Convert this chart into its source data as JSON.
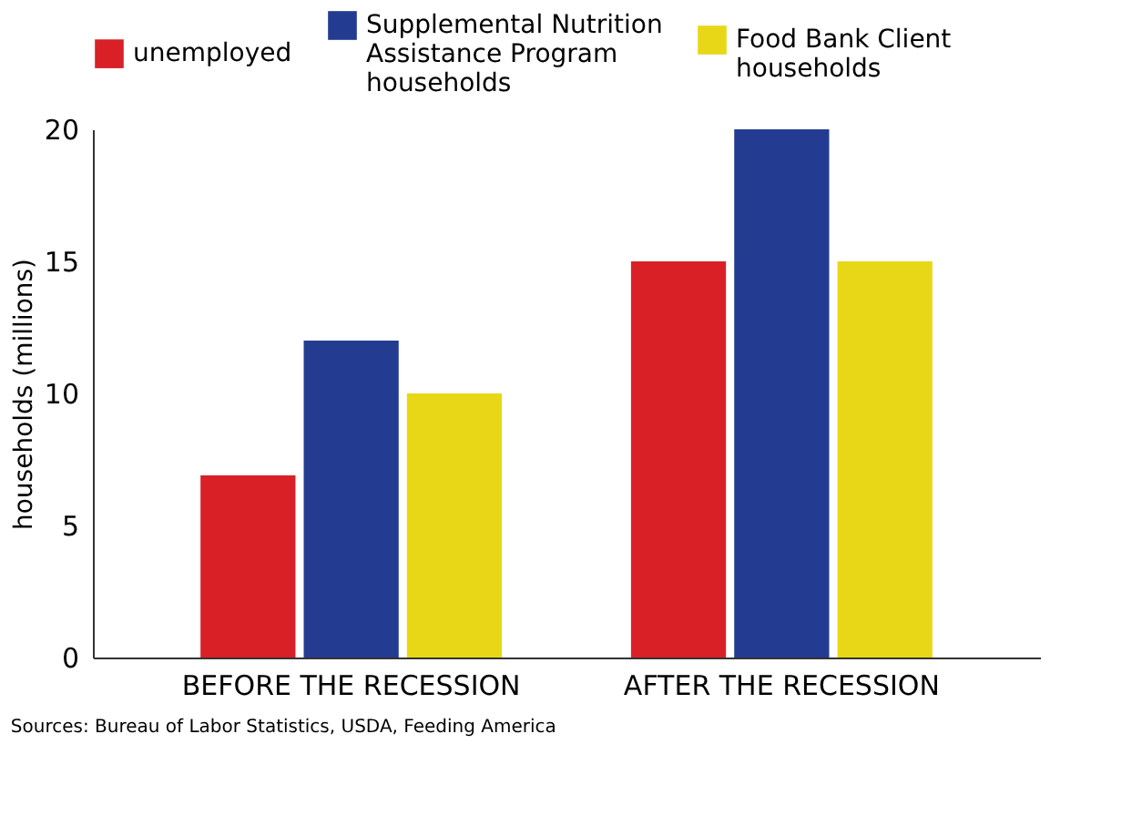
{
  "chart_data": {
    "type": "bar",
    "ylabel": "households (millions)",
    "categories": [
      "BEFORE THE RECESSION",
      "AFTER THE RECESSION"
    ],
    "series": [
      {
        "name": "unemployed",
        "color": "#d92027",
        "values": [
          6.9,
          15
        ]
      },
      {
        "name": "Supplemental Nutrition Assistance Program households",
        "color": "#233b90",
        "values": [
          12,
          20
        ]
      },
      {
        "name": "Food Bank Client households",
        "color": "#e8d716",
        "values": [
          10,
          15
        ]
      }
    ],
    "ylim": [
      0,
      20
    ],
    "yticks": [
      0,
      5,
      10,
      15,
      20
    ],
    "grid": false,
    "legend": "top",
    "annotations": [
      "Sources: Bureau of Labor Statistics, USDA, Feeding America"
    ]
  }
}
